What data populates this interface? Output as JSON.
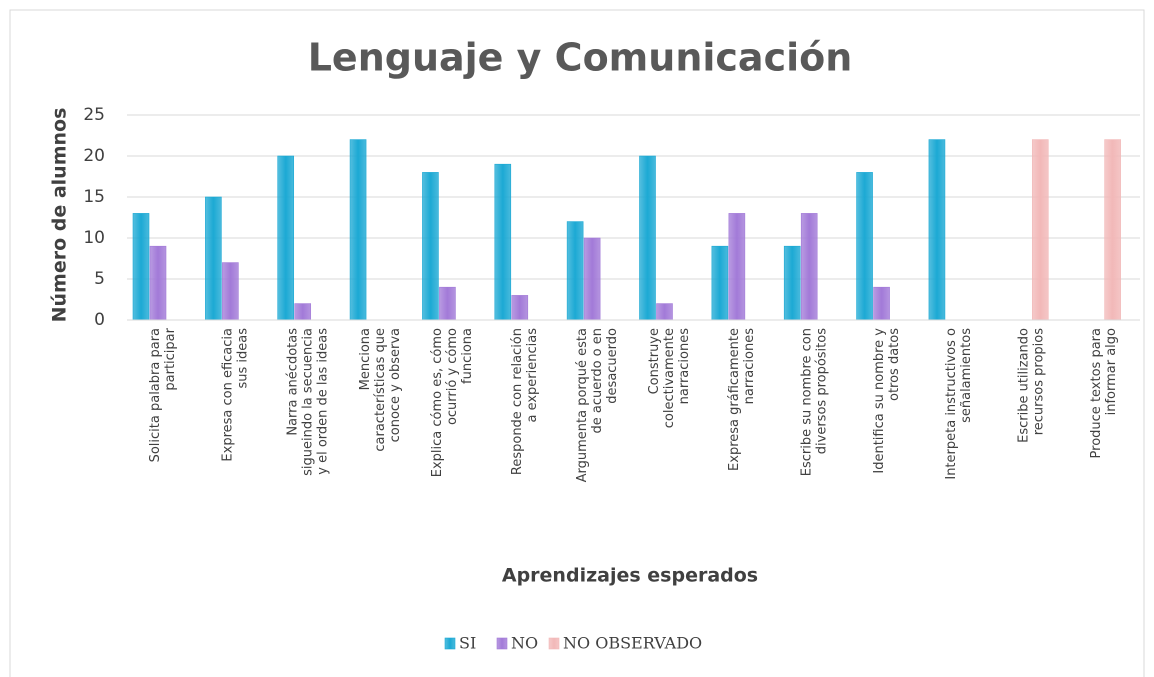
{
  "chart_data": {
    "type": "bar",
    "title": "Lenguaje y Comunicación",
    "y_label": "Número de alumnos",
    "x_label": "Aprendizajes esperados",
    "categories": [
      [
        "Solicita palabra para",
        "participar"
      ],
      [
        "Expresa con eficacia",
        "sus ideas"
      ],
      [
        "Narra anécdotas",
        "sigueindo la secuencia",
        "y el orden de las ideas"
      ],
      [
        "Menciona",
        "características que",
        "conoce y observa"
      ],
      [
        "Explica cómo es, cómo",
        "ocurrió y cómo",
        "funciona"
      ],
      [
        "Responde con relación",
        "a experiencias"
      ],
      [
        "Argumenta porqué esta",
        "de acuerdo o en",
        "desacuerdo"
      ],
      [
        "Construye",
        "colectivamente",
        "narraciones"
      ],
      [
        "Expresa gráficamente",
        "narraciones"
      ],
      [
        "Escribe su nombre con",
        "diversos propósitos"
      ],
      [
        "Identifica su nombre y",
        "otros datos"
      ],
      [
        "Interpeta instructivos o",
        "señalamientos"
      ],
      [
        "Escribe utilizando",
        "recursos propios"
      ],
      [
        "Produce textos para",
        "informar algo"
      ]
    ],
    "series": [
      {
        "name": "SI",
        "color": "#1ca9d4",
        "values": [
          13,
          15,
          20,
          22,
          18,
          19,
          12,
          20,
          9,
          9,
          18,
          22,
          null,
          null
        ]
      },
      {
        "name": "NO",
        "color": "#a27ad8",
        "values": [
          9,
          7,
          2,
          null,
          4,
          3,
          10,
          2,
          13,
          13,
          4,
          null,
          null,
          null
        ]
      },
      {
        "name": "NO OBSERVADO",
        "color": "#f2b8b8",
        "values": [
          null,
          null,
          null,
          null,
          null,
          null,
          null,
          null,
          null,
          null,
          null,
          null,
          22,
          22
        ]
      }
    ],
    "ylim": [
      0,
      25
    ],
    "yticks": [
      0,
      5,
      10,
      15,
      20,
      25
    ],
    "grid": true,
    "legend": "bottom"
  }
}
